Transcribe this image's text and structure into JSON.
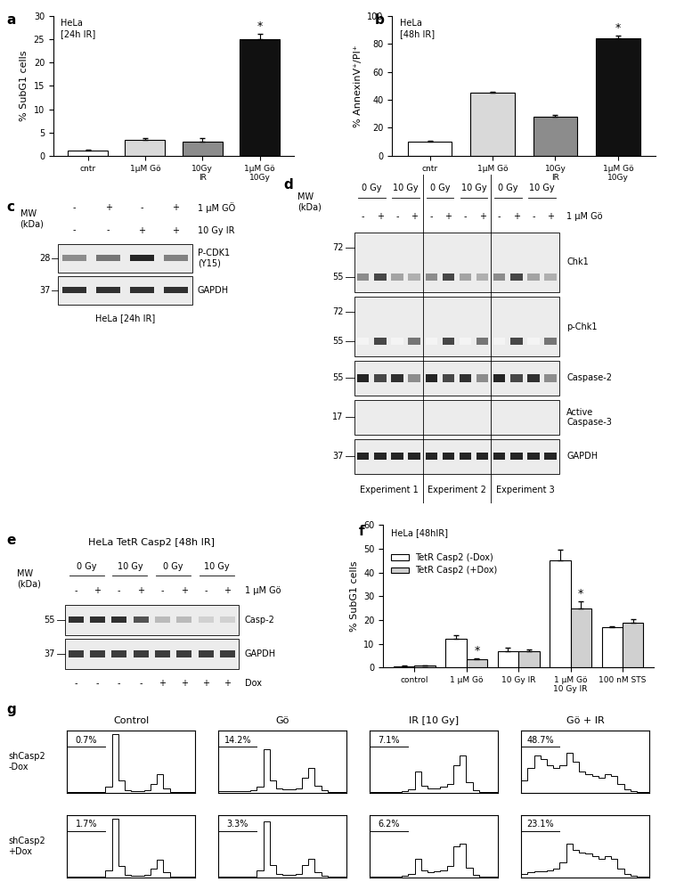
{
  "chart_data": [
    {
      "panel": "a",
      "type": "bar",
      "title": "HeLa\n[24h IR]",
      "y_label": "% SubG1 cells",
      "categories": [
        "cntr",
        "1µM Gö",
        "10Gy\nIR",
        "1µM Gö\n10Gy"
      ],
      "values": [
        1.2,
        3.5,
        3.1,
        25
      ],
      "errors": [
        0.1,
        0.3,
        0.6,
        1.2
      ],
      "colors": [
        "#ffffff",
        "#d9d9d9",
        "#8c8c8c",
        "#111111"
      ],
      "annotations": [
        {
          "text": "*",
          "index": 3
        }
      ],
      "ylim": [
        0,
        30
      ],
      "yticks": [
        0,
        5,
        10,
        15,
        20,
        25,
        30
      ]
    },
    {
      "panel": "b",
      "type": "bar",
      "title": "HeLa\n[48h IR]",
      "y_label": "% AnnexinV⁺/PI⁺",
      "categories": [
        "cntr",
        "1µM Gö",
        "10Gy\nIR",
        "1µM Gö\n10Gy"
      ],
      "values": [
        10,
        45,
        28,
        84
      ],
      "errors": [
        1,
        1,
        1,
        2
      ],
      "colors": [
        "#ffffff",
        "#d9d9d9",
        "#8c8c8c",
        "#111111"
      ],
      "annotations": [
        {
          "text": "*",
          "index": 3
        }
      ],
      "ylim": [
        0,
        100
      ],
      "yticks": [
        0,
        20,
        40,
        60,
        80,
        100
      ]
    },
    {
      "panel": "f",
      "type": "bar",
      "title": "HeLa [48hIR]",
      "y_label": "% SubG1 cells",
      "categories": [
        "control",
        "1 µM Gö",
        "10 Gy IR",
        "1 µM Gö\n10 Gy IR",
        "100 nM STS"
      ],
      "series": [
        {
          "name": "TetR Casp2 (-Dox)",
          "color": "#ffffff",
          "values": [
            0.5,
            12,
            7,
            45,
            17
          ],
          "errors": [
            0.3,
            1.5,
            1.5,
            4.5,
            0.5
          ],
          "annotations": []
        },
        {
          "name": "TetR Casp2 (+Dox)",
          "color": "#d0d0d0",
          "values": [
            0.7,
            3.5,
            7,
            25,
            19
          ],
          "errors": [
            0.3,
            0.5,
            0.6,
            3,
            1.5
          ],
          "annotations": [
            {
              "text": "*",
              "index": 1
            },
            {
              "text": "*",
              "index": 3
            }
          ]
        }
      ],
      "legend": "upper left",
      "ylim": [
        0,
        60
      ],
      "yticks": [
        0,
        10,
        20,
        30,
        40,
        50,
        60
      ]
    }
  ],
  "blots": [
    {
      "panel": "c",
      "lanes": 4,
      "mw_label": "MW\n(kDa)",
      "header": [
        {
          "lanes": [
            "-",
            "+",
            "-",
            "+"
          ],
          "label": "1 µM GÖ"
        },
        {
          "lanes": [
            "-",
            "-",
            "+",
            "+"
          ],
          "label": "10 Gy IR"
        }
      ],
      "rows": [
        {
          "name": "P-CDK1\n(Y15)",
          "mw": [
            28
          ],
          "bands": [
            0.5,
            0.6,
            0.95,
            0.55
          ]
        },
        {
          "name": "GAPDH",
          "mw": [
            37
          ],
          "bands": [
            0.9,
            0.9,
            0.9,
            0.9
          ]
        }
      ],
      "footer": [],
      "caption": "HeLa [24h IR]"
    },
    {
      "panel": "d",
      "lanes": 12,
      "mw_label": "MW\n(kDa)",
      "header": [
        {
          "groups": [
            "0 Gy",
            "10 Gy",
            "0 Gy",
            "10 Gy",
            "0 Gy",
            "10 Gy"
          ]
        },
        {
          "lanes": [
            "-",
            "+",
            "-",
            "+",
            "-",
            "+",
            "-",
            "+",
            "-",
            "+",
            "-",
            "+"
          ],
          "label": "1 µM Gö"
        }
      ],
      "rows": [
        {
          "name": "Chk1",
          "mw": [
            72,
            55
          ],
          "bands": [
            0.5,
            0.8,
            0.4,
            0.35,
            0.5,
            0.8,
            0.4,
            0.35,
            0.5,
            0.8,
            0.4,
            0.35
          ]
        },
        {
          "name": "p-Chk1",
          "mw": [
            72,
            55
          ],
          "bands": [
            0.05,
            0.8,
            0.05,
            0.6,
            0.05,
            0.8,
            0.05,
            0.6,
            0.05,
            0.8,
            0.05,
            0.6
          ]
        },
        {
          "name": "Caspase-2",
          "mw": [
            55
          ],
          "bands": [
            0.95,
            0.8,
            0.9,
            0.5,
            0.95,
            0.8,
            0.9,
            0.5,
            0.95,
            0.8,
            0.9,
            0.5
          ]
        },
        {
          "name": "Active\nCaspase-3",
          "mw": [
            17
          ],
          "bands": [
            0,
            0,
            0,
            0,
            0,
            0,
            0,
            0,
            0,
            0,
            0,
            0
          ]
        },
        {
          "name": "GAPDH",
          "mw": [
            37
          ],
          "bands": [
            0.95,
            0.95,
            0.95,
            0.95,
            0.95,
            0.95,
            0.95,
            0.95,
            0.95,
            0.95,
            0.95,
            0.95
          ]
        }
      ],
      "footer": [
        {
          "groups": [
            "Experiment 1",
            "Experiment 2",
            "Experiment 3"
          ]
        }
      ]
    },
    {
      "panel": "e",
      "lanes": 8,
      "mw_label": "MW\n(kDa)",
      "title": "HeLa TetR Casp2 [48h IR]",
      "header": [
        {
          "groups": [
            "0 Gy",
            "10 Gy",
            "0 Gy",
            "10 Gy"
          ]
        },
        {
          "lanes": [
            "-",
            "+",
            "-",
            "+",
            "-",
            "+",
            "-",
            "+"
          ],
          "label": "1 µM Gö"
        }
      ],
      "rows": [
        {
          "name": "Casp-2",
          "mw": [
            55
          ],
          "bands": [
            0.9,
            0.9,
            0.9,
            0.75,
            0.3,
            0.3,
            0.2,
            0.2
          ]
        },
        {
          "name": "GAPDH",
          "mw": [
            37
          ],
          "bands": [
            0.85,
            0.85,
            0.85,
            0.85,
            0.85,
            0.85,
            0.85,
            0.85
          ]
        }
      ],
      "footer": [
        {
          "lanes": [
            "-",
            "-",
            "-",
            "-",
            "+",
            "+",
            "+",
            "+"
          ],
          "label": "Dox"
        }
      ]
    }
  ],
  "flow": {
    "panel": "g",
    "type": "histogram",
    "columns": [
      "Control",
      "Gö",
      "IR [10 Gy]",
      "Gö + IR"
    ],
    "rows": [
      "shCasp2\n-Dox",
      "shCasp2\n+Dox"
    ],
    "bins": [
      0,
      1,
      2,
      3,
      4,
      5,
      6,
      7,
      8,
      9,
      10,
      11,
      12,
      13,
      14,
      15,
      16,
      17,
      18,
      19,
      20
    ],
    "xlim": [
      0,
      20
    ],
    "ylim": [
      0,
      100
    ],
    "tick_labels": false,
    "gate": [
      0,
      6
    ],
    "panels": [
      [
        {
          "percent": "0.7%",
          "counts": [
            1,
            1,
            1,
            1,
            1,
            2,
            10,
            95,
            20,
            5,
            3,
            3,
            4,
            15,
            30,
            8,
            2,
            1,
            1,
            1
          ]
        },
        {
          "percent": "14.2%",
          "counts": [
            3,
            3,
            3,
            3,
            3,
            4,
            10,
            70,
            20,
            8,
            6,
            6,
            8,
            25,
            40,
            12,
            4,
            2,
            1,
            1
          ]
        },
        {
          "percent": "7.1%",
          "counts": [
            1,
            2,
            2,
            2,
            2,
            3,
            6,
            35,
            12,
            8,
            8,
            10,
            15,
            45,
            60,
            18,
            5,
            2,
            1,
            1
          ]
        },
        {
          "percent": "48.7%",
          "counts": [
            20,
            40,
            60,
            55,
            45,
            40,
            45,
            65,
            50,
            35,
            30,
            28,
            25,
            30,
            28,
            15,
            6,
            3,
            1,
            1
          ]
        }
      ],
      [
        {
          "percent": "1.7%",
          "counts": [
            1,
            1,
            1,
            1,
            1,
            2,
            12,
            95,
            18,
            5,
            3,
            3,
            4,
            14,
            28,
            8,
            2,
            1,
            1,
            1
          ]
        },
        {
          "percent": "3.3%",
          "counts": [
            1,
            1,
            1,
            1,
            1,
            2,
            12,
            90,
            20,
            6,
            4,
            4,
            6,
            20,
            30,
            9,
            3,
            1,
            1,
            1
          ]
        },
        {
          "percent": "6.2%",
          "counts": [
            1,
            1,
            1,
            2,
            2,
            3,
            6,
            30,
            12,
            9,
            10,
            12,
            18,
            50,
            55,
            16,
            5,
            2,
            1,
            1
          ]
        },
        {
          "percent": "23.1%",
          "counts": [
            6,
            8,
            10,
            10,
            12,
            15,
            25,
            55,
            45,
            40,
            38,
            35,
            30,
            35,
            30,
            15,
            6,
            3,
            1,
            1
          ]
        }
      ]
    ]
  }
}
